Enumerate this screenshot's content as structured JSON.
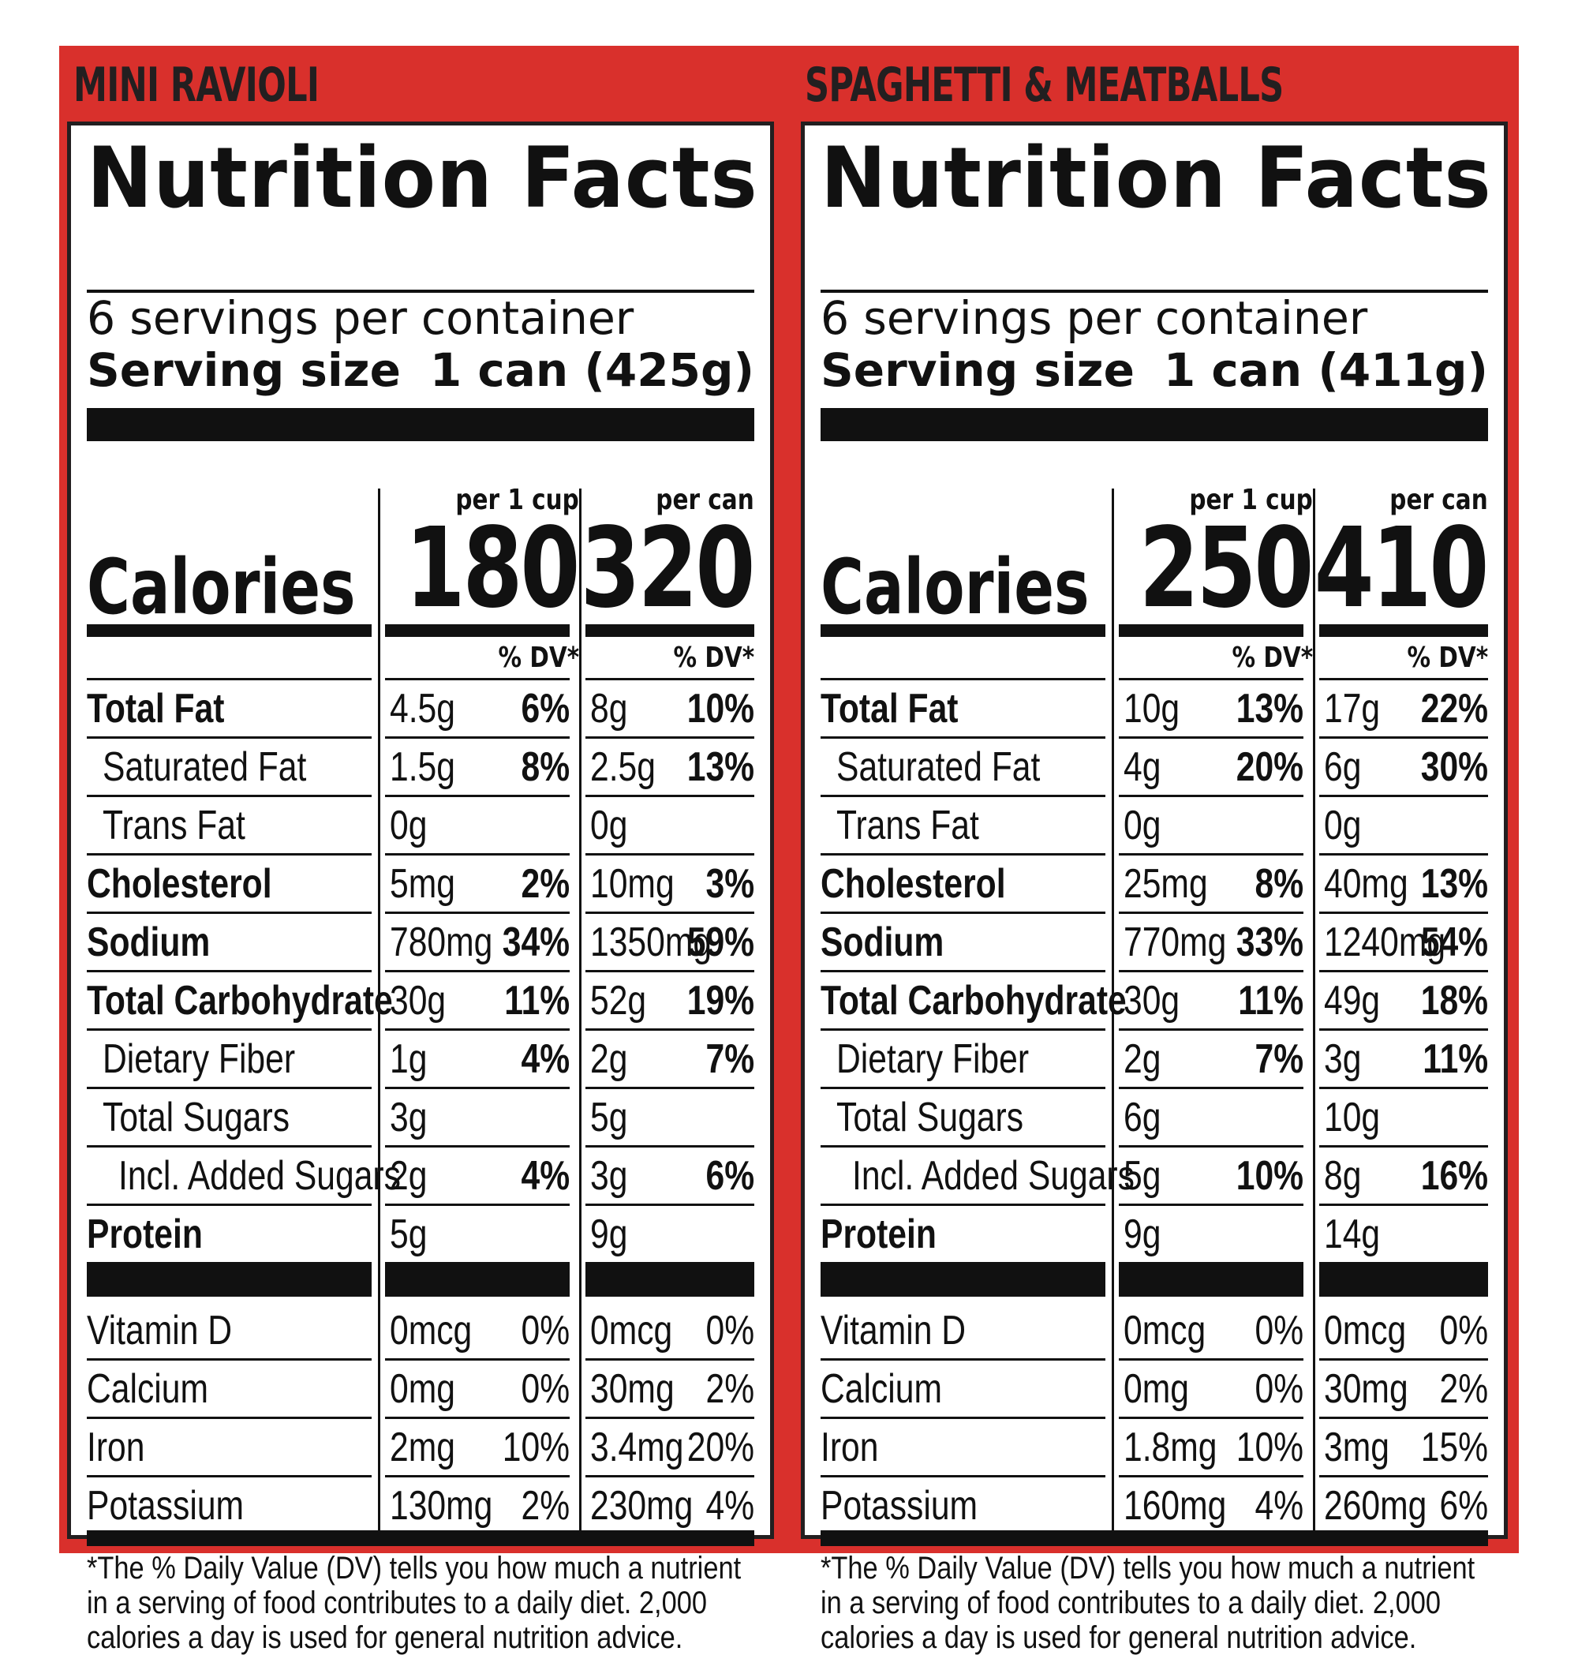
{
  "panels": [
    {
      "product": "MINI RAVIOLI",
      "title": "Nutrition Facts",
      "servings": "6 servings per container",
      "serving_size_label": "Serving size",
      "serving_size_value": "1 can (425g)",
      "col1_head": "per 1 cup",
      "col2_head": "per can",
      "calories_label": "Calories",
      "calories_cup": "180",
      "calories_can": "320",
      "dv_head": "% DV*",
      "nutrients": [
        {
          "name": "Total Fat",
          "cup_amt": "4.5g",
          "cup_dv": "6%",
          "can_amt": "8g",
          "can_dv": "10%"
        },
        {
          "name": "Saturated Fat",
          "cup_amt": "1.5g",
          "cup_dv": "8%",
          "can_amt": "2.5g",
          "can_dv": "13%"
        },
        {
          "name": "Trans Fat",
          "cup_amt": "0g",
          "cup_dv": "",
          "can_amt": "0g",
          "can_dv": ""
        },
        {
          "name": "Cholesterol",
          "cup_amt": "5mg",
          "cup_dv": "2%",
          "can_amt": "10mg",
          "can_dv": "3%"
        },
        {
          "name": "Sodium",
          "cup_amt": "780mg",
          "cup_dv": "34%",
          "can_amt": "1350mg",
          "can_dv": "59%"
        },
        {
          "name": "Total Carbohydrate",
          "cup_amt": "30g",
          "cup_dv": "11%",
          "can_amt": "52g",
          "can_dv": "19%"
        },
        {
          "name": "Dietary Fiber",
          "cup_amt": "1g",
          "cup_dv": "4%",
          "can_amt": "2g",
          "can_dv": "7%"
        },
        {
          "name": "Total Sugars",
          "cup_amt": "3g",
          "cup_dv": "",
          "can_amt": "5g",
          "can_dv": ""
        },
        {
          "name": "Incl. Added Sugars",
          "cup_amt": "2g",
          "cup_dv": "4%",
          "can_amt": "3g",
          "can_dv": "6%"
        },
        {
          "name": "Protein",
          "cup_amt": "5g",
          "cup_dv": "",
          "can_amt": "9g",
          "can_dv": ""
        }
      ],
      "vitamins": [
        {
          "name": "Vitamin D",
          "cup_amt": "0mcg",
          "cup_dv": "0%",
          "can_amt": "0mcg",
          "can_dv": "0%"
        },
        {
          "name": "Calcium",
          "cup_amt": "0mg",
          "cup_dv": "0%",
          "can_amt": "30mg",
          "can_dv": "2%"
        },
        {
          "name": "Iron",
          "cup_amt": "2mg",
          "cup_dv": "10%",
          "can_amt": "3.4mg",
          "can_dv": "20%"
        },
        {
          "name": "Potassium",
          "cup_amt": "130mg",
          "cup_dv": "2%",
          "can_amt": "230mg",
          "can_dv": "4%"
        }
      ],
      "footnote": "*The % Daily Value (DV) tells you how much a nutrient in a serving of food contributes to a daily diet. 2,000 calories a day is used for general nutrition advice."
    },
    {
      "product": "SPAGHETTI & MEATBALLS",
      "title": "Nutrition Facts",
      "servings": "6 servings per container",
      "serving_size_label": "Serving size",
      "serving_size_value": "1 can (411g)",
      "col1_head": "per 1 cup",
      "col2_head": "per can",
      "calories_label": "Calories",
      "calories_cup": "250",
      "calories_can": "410",
      "dv_head": "% DV*",
      "nutrients": [
        {
          "name": "Total Fat",
          "cup_amt": "10g",
          "cup_dv": "13%",
          "can_amt": "17g",
          "can_dv": "22%"
        },
        {
          "name": "Saturated Fat",
          "cup_amt": "4g",
          "cup_dv": "20%",
          "can_amt": "6g",
          "can_dv": "30%"
        },
        {
          "name": "Trans Fat",
          "cup_amt": "0g",
          "cup_dv": "",
          "can_amt": "0g",
          "can_dv": ""
        },
        {
          "name": "Cholesterol",
          "cup_amt": "25mg",
          "cup_dv": "8%",
          "can_amt": "40mg",
          "can_dv": "13%"
        },
        {
          "name": "Sodium",
          "cup_amt": "770mg",
          "cup_dv": "33%",
          "can_amt": "1240mg",
          "can_dv": "54%"
        },
        {
          "name": "Total Carbohydrate",
          "cup_amt": "30g",
          "cup_dv": "11%",
          "can_amt": "49g",
          "can_dv": "18%"
        },
        {
          "name": "Dietary Fiber",
          "cup_amt": "2g",
          "cup_dv": "7%",
          "can_amt": "3g",
          "can_dv": "11%"
        },
        {
          "name": "Total Sugars",
          "cup_amt": "6g",
          "cup_dv": "",
          "can_amt": "10g",
          "can_dv": ""
        },
        {
          "name": "Incl. Added Sugars",
          "cup_amt": "5g",
          "cup_dv": "10%",
          "can_amt": "8g",
          "can_dv": "16%"
        },
        {
          "name": "Protein",
          "cup_amt": "9g",
          "cup_dv": "",
          "can_amt": "14g",
          "can_dv": ""
        }
      ],
      "vitamins": [
        {
          "name": "Vitamin D",
          "cup_amt": "0mcg",
          "cup_dv": "0%",
          "can_amt": "0mcg",
          "can_dv": "0%"
        },
        {
          "name": "Calcium",
          "cup_amt": "0mg",
          "cup_dv": "0%",
          "can_amt": "30mg",
          "can_dv": "2%"
        },
        {
          "name": "Iron",
          "cup_amt": "1.8mg",
          "cup_dv": "10%",
          "can_amt": "3mg",
          "can_dv": "15%"
        },
        {
          "name": "Potassium",
          "cup_amt": "160mg",
          "cup_dv": "4%",
          "can_amt": "260mg",
          "can_dv": "6%"
        }
      ],
      "footnote": "*The % Daily Value (DV) tells you how much a nutrient in a serving of food contributes to a daily diet. 2,000 calories a day is used for general nutrition advice."
    }
  ],
  "colors": {
    "frame": "#d9302c",
    "ink": "#111111"
  }
}
